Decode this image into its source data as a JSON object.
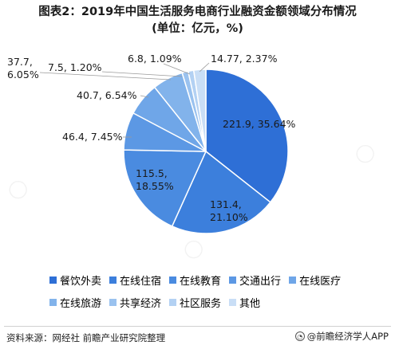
{
  "title": {
    "line1": "图表2：2019年中国生活服务电商行业融资金额领域分布情况",
    "line2": "(单位：亿元，%)"
  },
  "chart_data": {
    "type": "pie",
    "slices": [
      {
        "name": "餐饮外卖",
        "value": 221.9,
        "percent": 35.64,
        "label": "221.9, 35.64%",
        "color": "#2e6fd6"
      },
      {
        "name": "在线住宿",
        "value": 131.4,
        "percent": 21.1,
        "label": "131.4, 21.10%",
        "color": "#3c7fdc"
      },
      {
        "name": "在线教育",
        "value": 115.5,
        "percent": 18.55,
        "label": "115.5, 18.55%",
        "color": "#4a8be0"
      },
      {
        "name": "交通出行",
        "value": 46.4,
        "percent": 7.45,
        "label": "46.4, 7.45%",
        "color": "#5c98e4"
      },
      {
        "name": "在线医疗",
        "value": 40.7,
        "percent": 6.54,
        "label": "40.7, 6.54%",
        "color": "#6fa6e8"
      },
      {
        "name": "在线旅游",
        "value": 37.7,
        "percent": 6.05,
        "label": "37.7, 6.05%",
        "color": "#82b3eb"
      },
      {
        "name": "共享经济",
        "value": 7.5,
        "percent": 1.2,
        "label": "7.5, 1.20%",
        "color": "#9ac2ef"
      },
      {
        "name": "社区服务",
        "value": 6.8,
        "percent": 1.09,
        "label": "6.8, 1.09%",
        "color": "#b3d1f3"
      },
      {
        "name": "其他",
        "value": 14.77,
        "percent": 2.37,
        "label": "14.77, 2.37%",
        "color": "#c9def6"
      }
    ]
  },
  "footer": {
    "source": "资料来源：网经社 前瞻产业研究院整理",
    "brand": "@前瞻经济学人APP",
    "brand_icon": "qianzhan-logo-icon"
  }
}
